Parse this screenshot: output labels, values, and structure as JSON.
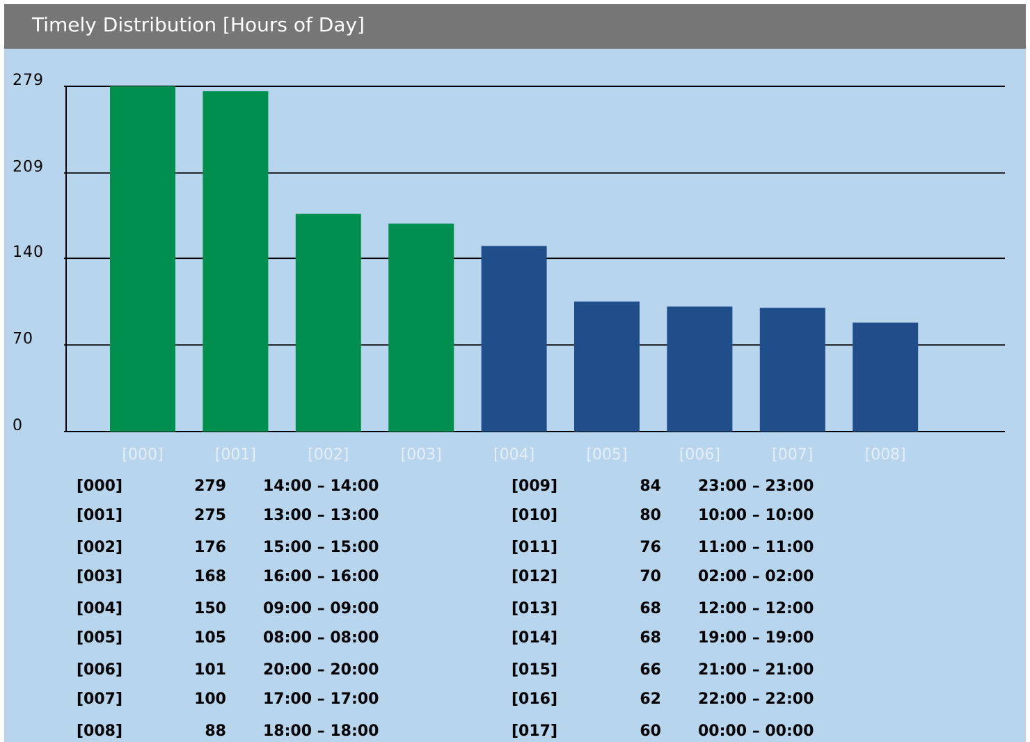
{
  "chart_data": {
    "type": "bar",
    "title": "Timely Distribution [Hours of Day]",
    "categories": [
      "[000]",
      "[001]",
      "[002]",
      "[003]",
      "[004]",
      "[005]",
      "[006]",
      "[007]",
      "[008]"
    ],
    "values": [
      279,
      275,
      176,
      168,
      150,
      105,
      101,
      100,
      88
    ],
    "colors": [
      "#008f4f",
      "#008f4f",
      "#008f4f",
      "#008f4f",
      "#1f4e8a",
      "#1f4e8a",
      "#1f4e8a",
      "#1f4e8a",
      "#1f4e8a"
    ],
    "ylim": [
      0,
      279
    ],
    "yticks": [
      0,
      70,
      140,
      209,
      279
    ],
    "grid": true
  },
  "table": {
    "rows": [
      [
        "[000]",
        279,
        "14:00 – 14:00"
      ],
      [
        "[001]",
        275,
        "13:00 – 13:00"
      ],
      [
        "[002]",
        176,
        "15:00 – 15:00"
      ],
      [
        "[003]",
        168,
        "16:00 – 16:00"
      ],
      [
        "[004]",
        150,
        "09:00 – 09:00"
      ],
      [
        "[005]",
        105,
        "08:00 – 08:00"
      ],
      [
        "[006]",
        101,
        "20:00 – 20:00"
      ],
      [
        "[007]",
        100,
        "17:00 – 17:00"
      ],
      [
        "[008]",
        88,
        "18:00 – 18:00"
      ],
      [
        "[009]",
        84,
        "23:00 – 23:00"
      ],
      [
        "[010]",
        80,
        "10:00 – 10:00"
      ],
      [
        "[011]",
        76,
        "11:00 – 11:00"
      ],
      [
        "[012]",
        70,
        "02:00 – 02:00"
      ],
      [
        "[013]",
        68,
        "12:00 – 12:00"
      ],
      [
        "[014]",
        68,
        "19:00 – 19:00"
      ],
      [
        "[015]",
        66,
        "21:00 – 21:00"
      ],
      [
        "[016]",
        62,
        "22:00 – 22:00"
      ],
      [
        "[017]",
        60,
        "00:00 – 00:00"
      ]
    ]
  }
}
